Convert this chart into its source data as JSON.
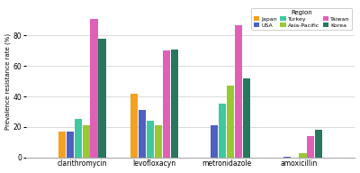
{
  "categories": [
    "clarithromycin",
    "levofloxacyn",
    "metronidazole",
    "amoxicillin"
  ],
  "regions": [
    "Japan",
    "USA",
    "Turkey",
    "Asia-Pacific",
    "Taiwan",
    "Korea"
  ],
  "colors": [
    "#F5A020",
    "#5060C0",
    "#40C8A0",
    "#98C832",
    "#E060B8",
    "#287860"
  ],
  "values": {
    "Japan": [
      17,
      42,
      0,
      0
    ],
    "USA": [
      17,
      31,
      21,
      0.5
    ],
    "Turkey": [
      25,
      24,
      35,
      0
    ],
    "Asia-Pacific": [
      21,
      21,
      47,
      3
    ],
    "Taiwan": [
      91,
      70,
      87,
      14
    ],
    "Korea": [
      78,
      71,
      52,
      18
    ]
  },
  "ylabel": "Prevalence resistance rate (%)",
  "ylim": [
    0,
    100
  ],
  "yticks": [
    0,
    20,
    40,
    60,
    80
  ],
  "legend_title": "Region",
  "background_color": "#FFFFFF",
  "grid_color": "#CCCCCC"
}
